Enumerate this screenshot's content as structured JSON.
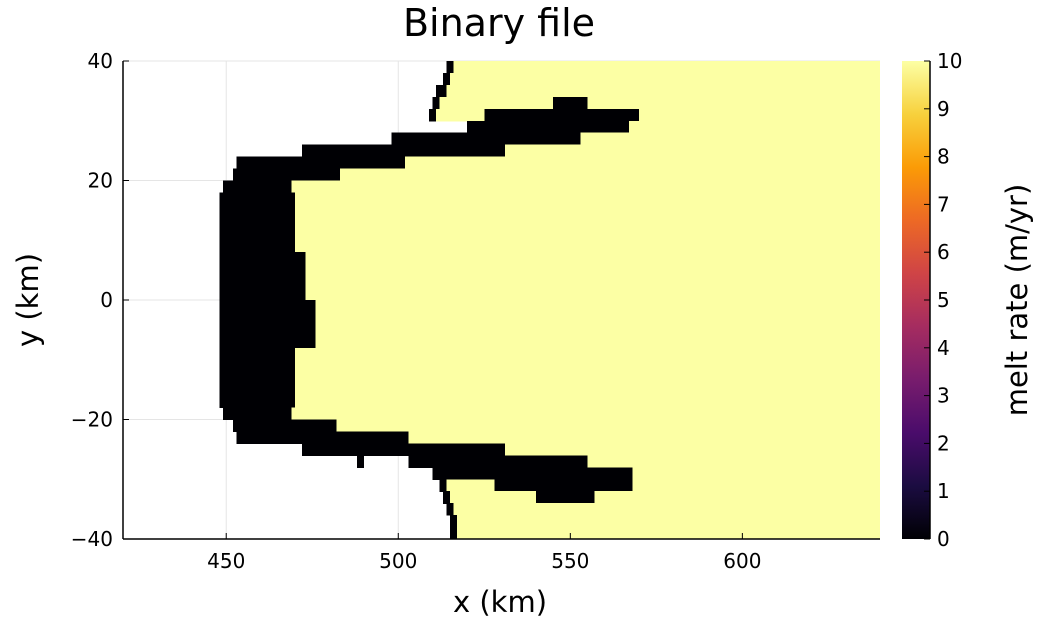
{
  "chart_data": {
    "type": "heatmap",
    "title": "Binary file",
    "xlabel": "x (km)",
    "ylabel": "y (km)",
    "xlim": [
      420,
      640
    ],
    "ylim": [
      -40,
      40
    ],
    "xticks": [
      450,
      500,
      550,
      600
    ],
    "yticks": [
      -40,
      -20,
      0,
      20,
      40
    ],
    "grid": true,
    "colorbar": {
      "label": "melt rate (m/yr)",
      "range": [
        0,
        10
      ],
      "ticks": [
        0,
        1,
        2,
        3,
        4,
        5,
        6,
        7,
        8,
        9,
        10
      ],
      "colormap": "inferno",
      "colors": [
        "#000004",
        "#1b0c41",
        "#4a0c6b",
        "#781c6d",
        "#a52c60",
        "#cf4446",
        "#ed6925",
        "#fb9b06",
        "#f7d13d",
        "#fcffa4"
      ]
    },
    "values_present": [
      0,
      10
    ],
    "region_bounds": {
      "description": "Per-row x-extent (km) of grounded (0, black) and melting (10, yellow) cells; outside these is no data",
      "rows": [
        {
          "y": [
            38,
            40
          ],
          "zero": [
            [
              514,
              516
            ]
          ],
          "ten": [
            [
              516,
              640
            ]
          ]
        },
        {
          "y": [
            36,
            38
          ],
          "zero": [
            [
              513,
              515
            ]
          ],
          "ten": [
            [
              515,
              640
            ]
          ]
        },
        {
          "y": [
            34,
            36
          ],
          "zero": [
            [
              511,
              514
            ]
          ],
          "ten": [
            [
              514,
              640
            ]
          ]
        },
        {
          "y": [
            32,
            34
          ],
          "zero": [
            [
              510,
              512
            ],
            [
              545,
              555
            ]
          ],
          "ten": [
            [
              512,
              545
            ],
            [
              555,
              640
            ]
          ]
        },
        {
          "y": [
            30,
            32
          ],
          "zero": [
            [
              509,
              511
            ],
            [
              525,
              570
            ]
          ],
          "ten": [
            [
              511,
              525
            ],
            [
              570,
              640
            ]
          ]
        },
        {
          "y": [
            28,
            30
          ],
          "zero": [
            [
              520,
              567
            ]
          ],
          "ten": [
            [
              567,
              640
            ]
          ]
        },
        {
          "y": [
            26,
            28
          ],
          "zero": [
            [
              498,
              553
            ]
          ],
          "ten": [
            [
              553,
              640
            ]
          ]
        },
        {
          "y": [
            24,
            26
          ],
          "zero": [
            [
              487,
              489
            ],
            [
              472,
              531
            ]
          ],
          "ten": [
            [
              531,
              640
            ]
          ]
        },
        {
          "y": [
            22,
            24
          ],
          "zero": [
            [
              453,
              502
            ]
          ],
          "ten": [
            [
              502,
              640
            ]
          ]
        },
        {
          "y": [
            20,
            22
          ],
          "zero": [
            [
              452,
              483
            ]
          ],
          "ten": [
            [
              483,
              640
            ]
          ]
        },
        {
          "y": [
            18,
            20
          ],
          "zero": [
            [
              449,
              469
            ]
          ],
          "ten": [
            [
              469,
              640
            ]
          ]
        },
        {
          "y": [
            8,
            18
          ],
          "zero": [
            [
              448,
              470
            ]
          ],
          "ten": [
            [
              470,
              640
            ]
          ]
        },
        {
          "y": [
            0,
            8
          ],
          "zero": [
            [
              448,
              473
            ]
          ],
          "ten": [
            [
              473,
              640
            ]
          ]
        },
        {
          "y": [
            -8,
            0
          ],
          "zero": [
            [
              448,
              476
            ]
          ],
          "ten": [
            [
              476,
              640
            ]
          ]
        },
        {
          "y": [
            -18,
            -8
          ],
          "zero": [
            [
              448,
              470
            ]
          ],
          "ten": [
            [
              470,
              640
            ]
          ]
        },
        {
          "y": [
            -20,
            -18
          ],
          "zero": [
            [
              449,
              469
            ]
          ],
          "ten": [
            [
              469,
              640
            ]
          ]
        },
        {
          "y": [
            -22,
            -20
          ],
          "zero": [
            [
              452,
              482
            ]
          ],
          "ten": [
            [
              482,
              640
            ]
          ]
        },
        {
          "y": [
            -24,
            -22
          ],
          "zero": [
            [
              453,
              503
            ]
          ],
          "ten": [
            [
              503,
              640
            ]
          ]
        },
        {
          "y": [
            -26,
            -24
          ],
          "zero": [
            [
              472,
              531
            ]
          ],
          "ten": [
            [
              531,
              640
            ]
          ]
        },
        {
          "y": [
            -28,
            -26
          ],
          "zero": [
            [
              488,
              490
            ],
            [
              503,
              555
            ]
          ],
          "ten": [
            [
              555,
              640
            ]
          ]
        },
        {
          "y": [
            -30,
            -28
          ],
          "zero": [
            [
              510,
              568
            ]
          ],
          "ten": [
            [
              568,
              640
            ]
          ]
        },
        {
          "y": [
            -32,
            -30
          ],
          "zero": [
            [
              512,
              514
            ],
            [
              528,
              568
            ]
          ],
          "ten": [
            [
              514,
              528
            ],
            [
              568,
              640
            ]
          ]
        },
        {
          "y": [
            -34,
            -32
          ],
          "zero": [
            [
              513,
              515
            ],
            [
              540,
              557
            ]
          ],
          "ten": [
            [
              515,
              540
            ],
            [
              557,
              640
            ]
          ]
        },
        {
          "y": [
            -36,
            -34
          ],
          "zero": [
            [
              514,
              516
            ]
          ],
          "ten": [
            [
              516,
              640
            ]
          ]
        },
        {
          "y": [
            -40,
            -36
          ],
          "zero": [
            [
              515,
              517
            ]
          ],
          "ten": [
            [
              517,
              640
            ]
          ]
        }
      ]
    }
  }
}
